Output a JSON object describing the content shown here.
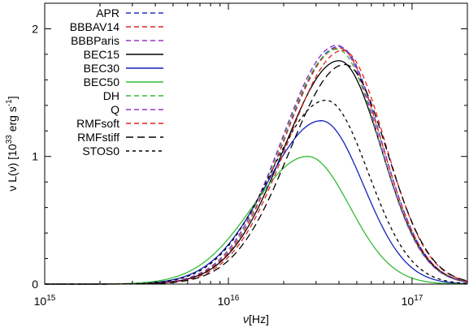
{
  "chart_data": {
    "type": "line",
    "xlabel_nu": "ν",
    "xlabel_rest": "[Hz]",
    "ylabel_parts": [
      "ν L(ν) [10",
      "33",
      " erg s",
      "-1",
      "]"
    ],
    "xscale": "log",
    "xlim": [
      1000000000000000.0,
      2e+17
    ],
    "ylim": [
      0,
      2.2
    ],
    "x_ticks": [
      {
        "value": 1000000000000000.0,
        "base": "10",
        "exp": "15"
      },
      {
        "value": 1e+16,
        "base": "10",
        "exp": "16"
      },
      {
        "value": 1e+17,
        "base": "10",
        "exp": "17"
      }
    ],
    "y_ticks": [
      {
        "value": 0,
        "label": "0"
      },
      {
        "value": 1,
        "label": "1"
      },
      {
        "value": 2,
        "label": "2"
      }
    ],
    "grid": false,
    "legend_position": "top-left",
    "series": [
      {
        "name": "APR",
        "color": "#2233cc",
        "dash": "dashed",
        "peak_x": 4e+16,
        "peak_y": 1.86
      },
      {
        "name": "BBBAV14",
        "color": "#dd2222",
        "dash": "dashed",
        "peak_x": 4e+16,
        "peak_y": 1.85
      },
      {
        "name": "BBBParis",
        "color": "#9933cc",
        "dash": "dashed",
        "peak_x": 3.9e+16,
        "peak_y": 1.87
      },
      {
        "name": "BEC15",
        "color": "#000000",
        "dash": "solid",
        "peak_x": 4e+16,
        "peak_y": 1.75
      },
      {
        "name": "BEC30",
        "color": "#1122bb",
        "dash": "solid",
        "peak_x": 3.2e+16,
        "peak_y": 1.28
      },
      {
        "name": "BEC50",
        "color": "#33bb33",
        "dash": "solid",
        "peak_x": 2.7e+16,
        "peak_y": 1.0
      },
      {
        "name": "DH",
        "color": "#33bb33",
        "dash": "dashed",
        "peak_x": 3.9e+16,
        "peak_y": 1.84
      },
      {
        "name": "Q",
        "color": "#9933cc",
        "dash": "dashed",
        "peak_x": 3.9e+16,
        "peak_y": 1.87
      },
      {
        "name": "RMFsoft",
        "color": "#dd2222",
        "dash": "dashed",
        "peak_x": 4.2e+16,
        "peak_y": 1.83
      },
      {
        "name": "RMFstiff",
        "color": "#000000",
        "dash": "longdash",
        "peak_x": 4.3e+16,
        "peak_y": 1.72
      },
      {
        "name": "STOS0",
        "color": "#000000",
        "dash": "shortdash",
        "peak_x": 3.4e+16,
        "peak_y": 1.44
      }
    ]
  }
}
